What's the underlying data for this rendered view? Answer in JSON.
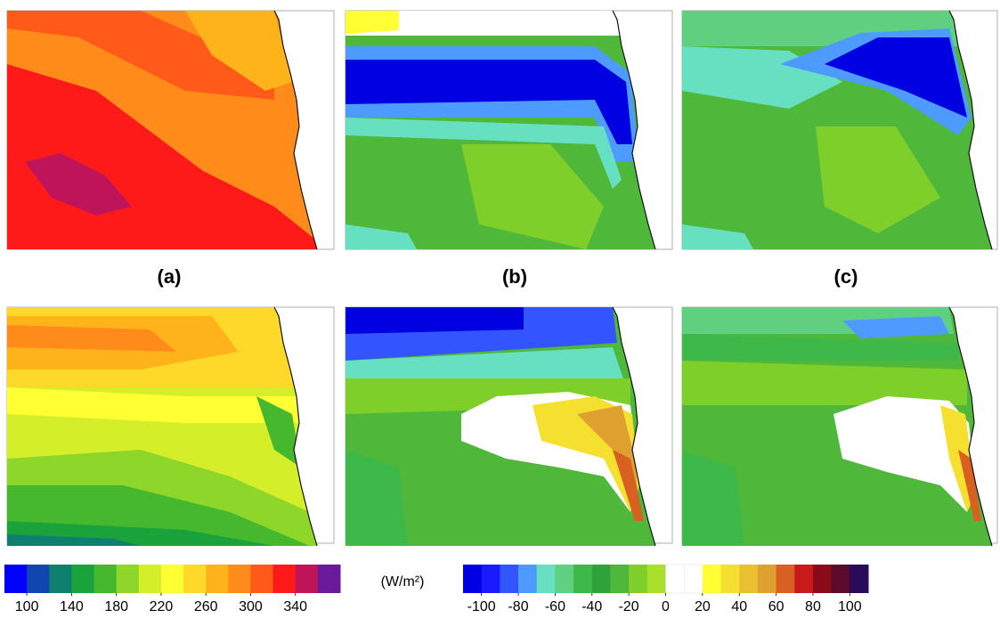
{
  "panels": {
    "labels": [
      "(a)",
      "(b)",
      "(c)"
    ]
  },
  "colorbars": [
    {
      "colors": [
        "#0000ff",
        "#1046b0",
        "#0f7f6f",
        "#1aa33a",
        "#46b82e",
        "#8fd62a",
        "#d4ee2a",
        "#ffff33",
        "#ffd92a",
        "#ffb31a",
        "#ff8c1a",
        "#ff5a1a",
        "#ff1a1a",
        "#c0145a",
        "#6a1a9a"
      ],
      "lim": [
        80,
        380
      ],
      "ticks": [
        100,
        140,
        180,
        220,
        260,
        300,
        340
      ]
    },
    {
      "colors": [
        "#0000e0",
        "#1a1aff",
        "#3355ff",
        "#4d9bff",
        "#66e0c0",
        "#5fcf80",
        "#3fb84a",
        "#2fa33a",
        "#4fb83a",
        "#7fcf2a",
        "#a8e02a",
        "#ffffff",
        "#ffffff",
        "#ffff33",
        "#f5e030",
        "#e8c030",
        "#e0a030",
        "#d86020",
        "#c81a1a",
        "#8a0a1a",
        "#5a0a2a",
        "#2a0a5a"
      ],
      "lim": [
        -110,
        110
      ],
      "ticks": [
        -100,
        -80,
        -60,
        -40,
        -20,
        0,
        20,
        40,
        60,
        80,
        100
      ]
    }
  ],
  "unit": "(W/m²)"
}
